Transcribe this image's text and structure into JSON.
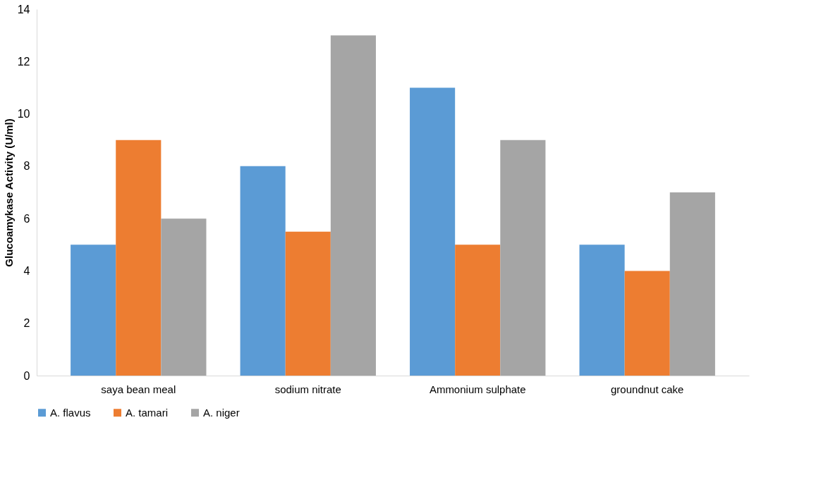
{
  "chart_data": {
    "type": "bar",
    "ylabel": "Glucoamykase Activity (U/ml)",
    "categories": [
      "saya bean meal",
      "sodium nitrate",
      "Ammonium sulphate",
      "groundnut cake"
    ],
    "series": [
      {
        "name": "A. flavus",
        "color": "#5b9bd5",
        "values": [
          5,
          8,
          11,
          5
        ]
      },
      {
        "name": "A. tamari",
        "color": "#ed7d31",
        "values": [
          9,
          5.5,
          5,
          4
        ]
      },
      {
        "name": "A. niger",
        "color": "#a5a5a5",
        "values": [
          6,
          13,
          9,
          7
        ]
      }
    ],
    "ylim": [
      0,
      14
    ],
    "yticks": [
      0,
      2,
      4,
      6,
      8,
      10,
      12,
      14
    ],
    "grid": false,
    "legend": "bottom"
  }
}
